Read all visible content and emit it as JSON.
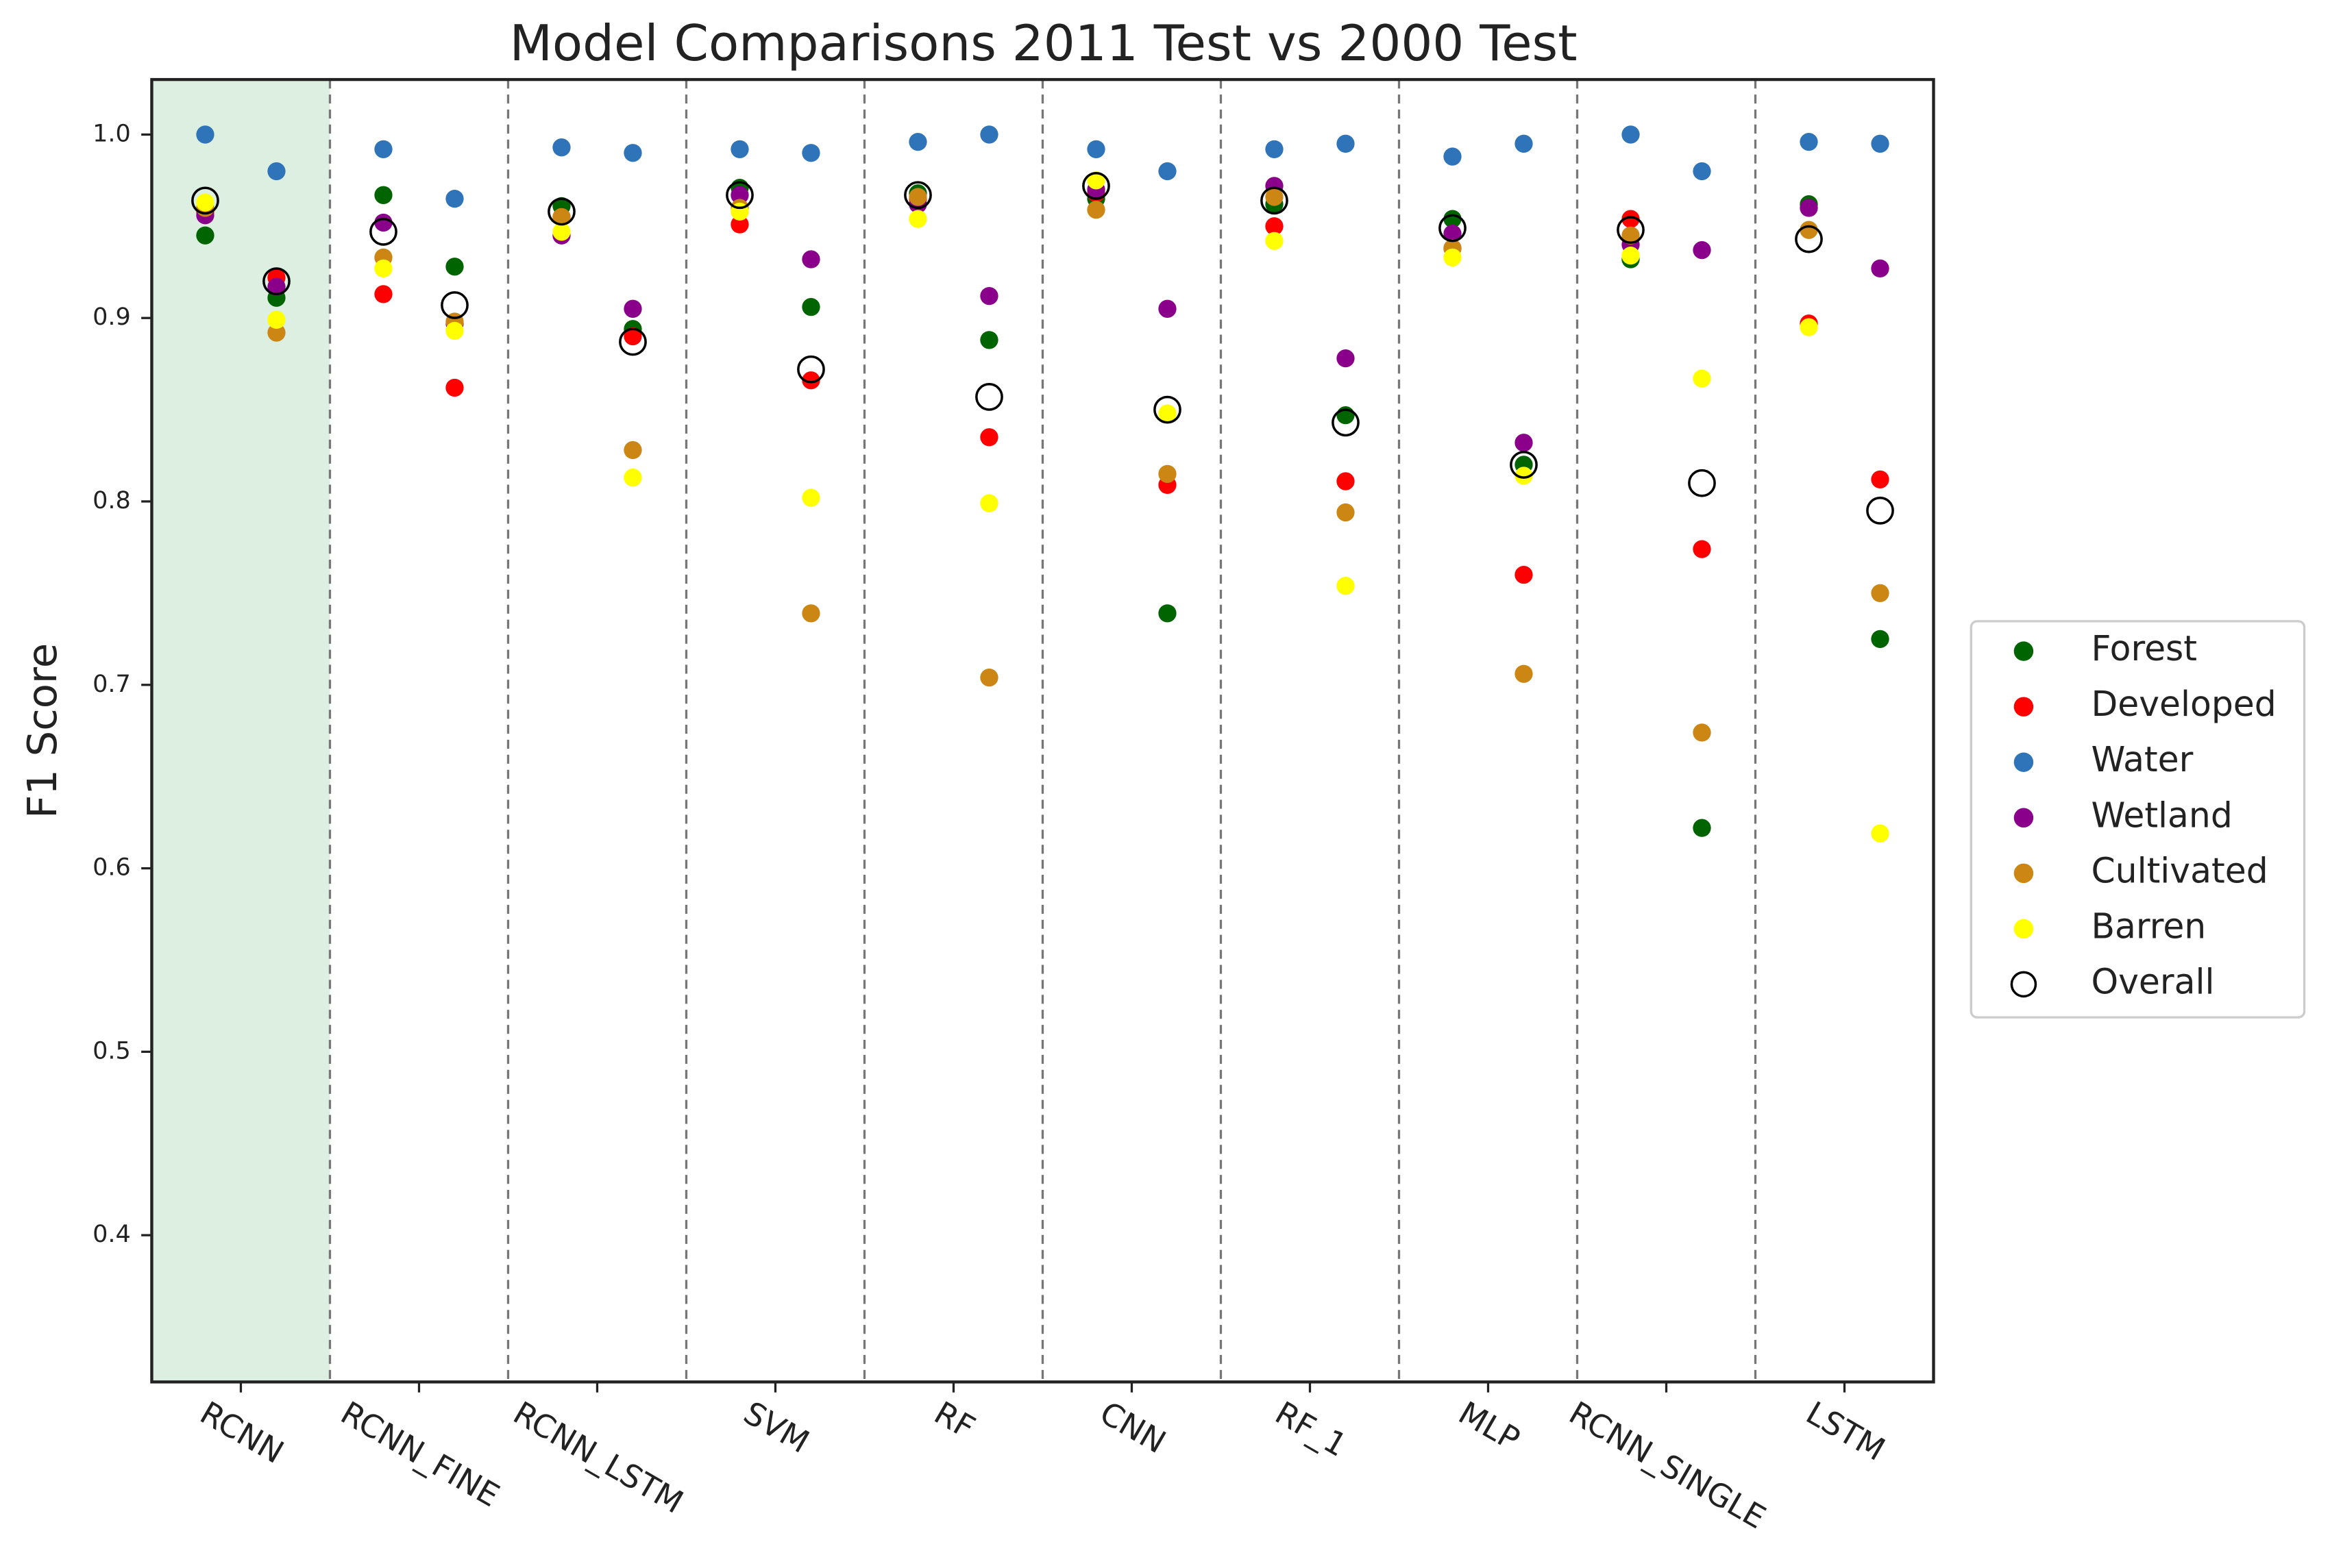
{
  "chart_data": {
    "type": "scatter",
    "title": "Model Comparisons 2011 Test vs 2000 Test",
    "y_label": "F1 Score",
    "categories": [
      "RCNN",
      "RCNN_FINE",
      "RCNN_LSTM",
      "SVM",
      "RF",
      "CNN",
      "RF_1",
      "MLP",
      "RCNN_SINGLE",
      "LSTM"
    ],
    "ylim": [
      0.32,
      1.03
    ],
    "yticks": [
      0.4,
      0.5,
      0.6,
      0.7,
      0.8,
      0.9,
      {
        "value": 1,
        "label": "1.0"
      }
    ],
    "legend": "right",
    "series": [
      {
        "name": "Forest",
        "color": "#006400",
        "marker": "filled",
        "values": [
          [
            0.945,
            0.911
          ],
          [
            0.967,
            0.928
          ],
          [
            0.961,
            0.894
          ],
          [
            0.971,
            0.906
          ],
          [
            0.968,
            0.888
          ],
          [
            0.965,
            0.739
          ],
          [
            0.962,
            0.847
          ],
          [
            0.954,
            0.82
          ],
          [
            0.932,
            0.622
          ],
          [
            0.962,
            0.725
          ]
        ]
      },
      {
        "name": "Developed",
        "color": "#ff0000",
        "marker": "filled",
        "values": [
          [
            0.958,
            0.922
          ],
          [
            0.913,
            0.862
          ],
          [
            0.955,
            0.89
          ],
          [
            0.951,
            0.866
          ],
          [
            0.965,
            0.835
          ],
          [
            0.968,
            0.809
          ],
          [
            0.95,
            0.811
          ],
          [
            0.938,
            0.76
          ],
          [
            0.954,
            0.774
          ],
          [
            0.897,
            0.812
          ]
        ]
      },
      {
        "name": "Water",
        "color": "#2f74b8",
        "marker": "filled",
        "values": [
          [
            1.0,
            0.98
          ],
          [
            0.992,
            0.965
          ],
          [
            0.993,
            0.99
          ],
          [
            0.992,
            0.99
          ],
          [
            0.996,
            1.0
          ],
          [
            0.992,
            0.98
          ],
          [
            0.992,
            0.995
          ],
          [
            0.988,
            0.995
          ],
          [
            1.0,
            0.98
          ],
          [
            0.996,
            0.995
          ]
        ]
      },
      {
        "name": "Wetland",
        "color": "#8b008b",
        "marker": "filled",
        "values": [
          [
            0.956,
            0.917
          ],
          [
            0.952,
            0.897
          ],
          [
            0.945,
            0.905
          ],
          [
            0.967,
            0.932
          ],
          [
            0.962,
            0.912
          ],
          [
            0.97,
            0.905
          ],
          [
            0.972,
            0.878
          ],
          [
            0.946,
            0.832
          ],
          [
            0.94,
            0.937
          ],
          [
            0.96,
            0.927
          ]
        ]
      },
      {
        "name": "Cultivated",
        "color": "#cc8614",
        "marker": "filled",
        "values": [
          [
            0.96,
            0.892
          ],
          [
            0.933,
            0.898
          ],
          [
            0.955,
            0.828
          ],
          [
            0.96,
            0.739
          ],
          [
            0.966,
            0.704
          ],
          [
            0.959,
            0.815
          ],
          [
            0.966,
            0.794
          ],
          [
            0.938,
            0.706
          ],
          [
            0.945,
            0.674
          ],
          [
            0.948,
            0.75
          ]
        ]
      },
      {
        "name": "Barren",
        "color": "#ffff00",
        "marker": "filled",
        "values": [
          [
            0.963,
            0.899
          ],
          [
            0.927,
            0.893
          ],
          [
            0.947,
            0.813
          ],
          [
            0.958,
            0.802
          ],
          [
            0.954,
            0.799
          ],
          [
            0.975,
            0.848
          ],
          [
            0.942,
            0.754
          ],
          [
            0.933,
            0.814
          ],
          [
            0.934,
            0.867
          ],
          [
            0.895,
            0.619
          ]
        ]
      },
      {
        "name": "Overall",
        "color": "#000000",
        "marker": "open",
        "values": [
          [
            0.964,
            0.92
          ],
          [
            0.947,
            0.907
          ],
          [
            0.958,
            0.887
          ],
          [
            0.967,
            0.872
          ],
          [
            0.967,
            0.857
          ],
          [
            0.972,
            0.85
          ],
          [
            0.964,
            0.843
          ],
          [
            0.949,
            0.82
          ],
          [
            0.948,
            0.81
          ],
          [
            0.943,
            0.795
          ]
        ]
      }
    ]
  }
}
